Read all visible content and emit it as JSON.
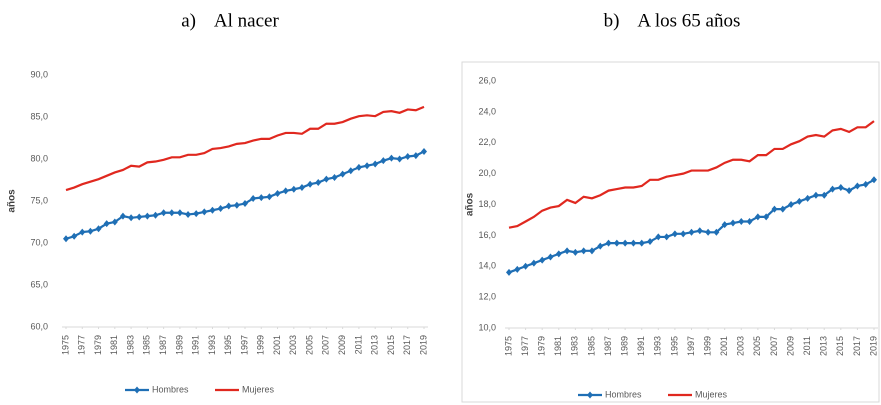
{
  "chart_data": [
    {
      "type": "line",
      "title": "a)    Al nacer",
      "y_label": "años",
      "x": [
        1975,
        1976,
        1977,
        1978,
        1979,
        1980,
        1981,
        1982,
        1983,
        1984,
        1985,
        1986,
        1987,
        1988,
        1989,
        1990,
        1991,
        1992,
        1993,
        1994,
        1995,
        1996,
        1997,
        1998,
        1999,
        2000,
        2001,
        2002,
        2003,
        2004,
        2005,
        2006,
        2007,
        2008,
        2009,
        2010,
        2011,
        2012,
        2013,
        2014,
        2015,
        2016,
        2017,
        2018,
        2019
      ],
      "xlim": [
        1975,
        2019
      ],
      "xticks": [
        1975,
        1977,
        1979,
        1981,
        1983,
        1985,
        1987,
        1989,
        1991,
        1993,
        1995,
        1997,
        1999,
        2001,
        2003,
        2005,
        2007,
        2009,
        2011,
        2013,
        2015,
        2017,
        2019
      ],
      "ylim": [
        60,
        90
      ],
      "yticks": [
        {
          "value": 60,
          "label": "60,0"
        },
        {
          "value": 65,
          "label": "65,0"
        },
        {
          "value": 70,
          "label": "70,0"
        },
        {
          "value": 75,
          "label": "75,0"
        },
        {
          "value": 80,
          "label": "80,0"
        },
        {
          "value": 85,
          "label": "85,0"
        },
        {
          "value": 90,
          "label": "90,0"
        }
      ],
      "grid": false,
      "legend": "bottom",
      "series": [
        {
          "name": "Hombres",
          "color": "#1f6fb5",
          "marker": "diamond",
          "values": [
            70.5,
            70.8,
            71.3,
            71.4,
            71.7,
            72.3,
            72.5,
            73.2,
            73.0,
            73.1,
            73.2,
            73.3,
            73.6,
            73.6,
            73.6,
            73.4,
            73.5,
            73.7,
            73.9,
            74.1,
            74.4,
            74.5,
            74.7,
            75.3,
            75.4,
            75.5,
            75.9,
            76.2,
            76.4,
            76.6,
            77.0,
            77.2,
            77.6,
            77.8,
            78.2,
            78.6,
            79.0,
            79.2,
            79.4,
            79.8,
            80.1,
            80.0,
            80.3,
            80.4,
            80.9
          ]
        },
        {
          "name": "Mujeres",
          "color": "#e0281f",
          "values": [
            76.3,
            76.6,
            77.0,
            77.3,
            77.6,
            78.0,
            78.4,
            78.7,
            79.2,
            79.1,
            79.6,
            79.7,
            79.9,
            80.2,
            80.2,
            80.5,
            80.5,
            80.7,
            81.2,
            81.3,
            81.5,
            81.8,
            81.9,
            82.2,
            82.4,
            82.4,
            82.8,
            83.1,
            83.1,
            83.0,
            83.6,
            83.6,
            84.2,
            84.2,
            84.4,
            84.8,
            85.1,
            85.2,
            85.1,
            85.6,
            85.7,
            85.5,
            85.9,
            85.8,
            86.2
          ]
        }
      ]
    },
    {
      "type": "line",
      "title": "b)    A los 65 años",
      "y_label": "años",
      "x": [
        1975,
        1976,
        1977,
        1978,
        1979,
        1980,
        1981,
        1982,
        1983,
        1984,
        1985,
        1986,
        1987,
        1988,
        1989,
        1990,
        1991,
        1992,
        1993,
        1994,
        1995,
        1996,
        1997,
        1998,
        1999,
        2000,
        2001,
        2002,
        2003,
        2004,
        2005,
        2006,
        2007,
        2008,
        2009,
        2010,
        2011,
        2012,
        2013,
        2014,
        2015,
        2016,
        2017,
        2018,
        2019
      ],
      "xlim": [
        1975,
        2019
      ],
      "xticks": [
        1975,
        1977,
        1979,
        1981,
        1983,
        1985,
        1987,
        1989,
        1991,
        1993,
        1995,
        1997,
        1999,
        2001,
        2003,
        2005,
        2007,
        2009,
        2011,
        2013,
        2015,
        2017,
        2019
      ],
      "ylim": [
        10,
        26
      ],
      "yticks": [
        {
          "value": 10,
          "label": "10,0"
        },
        {
          "value": 12,
          "label": "12,0"
        },
        {
          "value": 14,
          "label": "14,0"
        },
        {
          "value": 16,
          "label": "16,0"
        },
        {
          "value": 18,
          "label": "18,0"
        },
        {
          "value": 20,
          "label": "20,0"
        },
        {
          "value": 22,
          "label": "22,0"
        },
        {
          "value": 24,
          "label": "24,0"
        },
        {
          "value": 26,
          "label": "26,0"
        }
      ],
      "grid": false,
      "legend": "bottom",
      "series": [
        {
          "name": "Hombres",
          "color": "#1f6fb5",
          "marker": "diamond",
          "values": [
            13.6,
            13.8,
            14.0,
            14.2,
            14.4,
            14.6,
            14.8,
            15.0,
            14.9,
            15.0,
            15.0,
            15.3,
            15.5,
            15.5,
            15.5,
            15.5,
            15.5,
            15.6,
            15.9,
            15.9,
            16.1,
            16.1,
            16.2,
            16.3,
            16.2,
            16.2,
            16.7,
            16.8,
            16.9,
            16.9,
            17.2,
            17.2,
            17.7,
            17.7,
            18.0,
            18.2,
            18.4,
            18.6,
            18.6,
            19.0,
            19.1,
            18.9,
            19.2,
            19.3,
            19.6
          ]
        },
        {
          "name": "Mujeres",
          "color": "#e0281f",
          "values": [
            16.5,
            16.6,
            16.9,
            17.2,
            17.6,
            17.8,
            17.9,
            18.3,
            18.1,
            18.5,
            18.4,
            18.6,
            18.9,
            19.0,
            19.1,
            19.1,
            19.2,
            19.6,
            19.6,
            19.8,
            19.9,
            20.0,
            20.2,
            20.2,
            20.2,
            20.4,
            20.7,
            20.9,
            20.9,
            20.8,
            21.2,
            21.2,
            21.6,
            21.6,
            21.9,
            22.1,
            22.4,
            22.5,
            22.4,
            22.8,
            22.9,
            22.7,
            23.0,
            23.0,
            23.4
          ]
        }
      ]
    }
  ]
}
